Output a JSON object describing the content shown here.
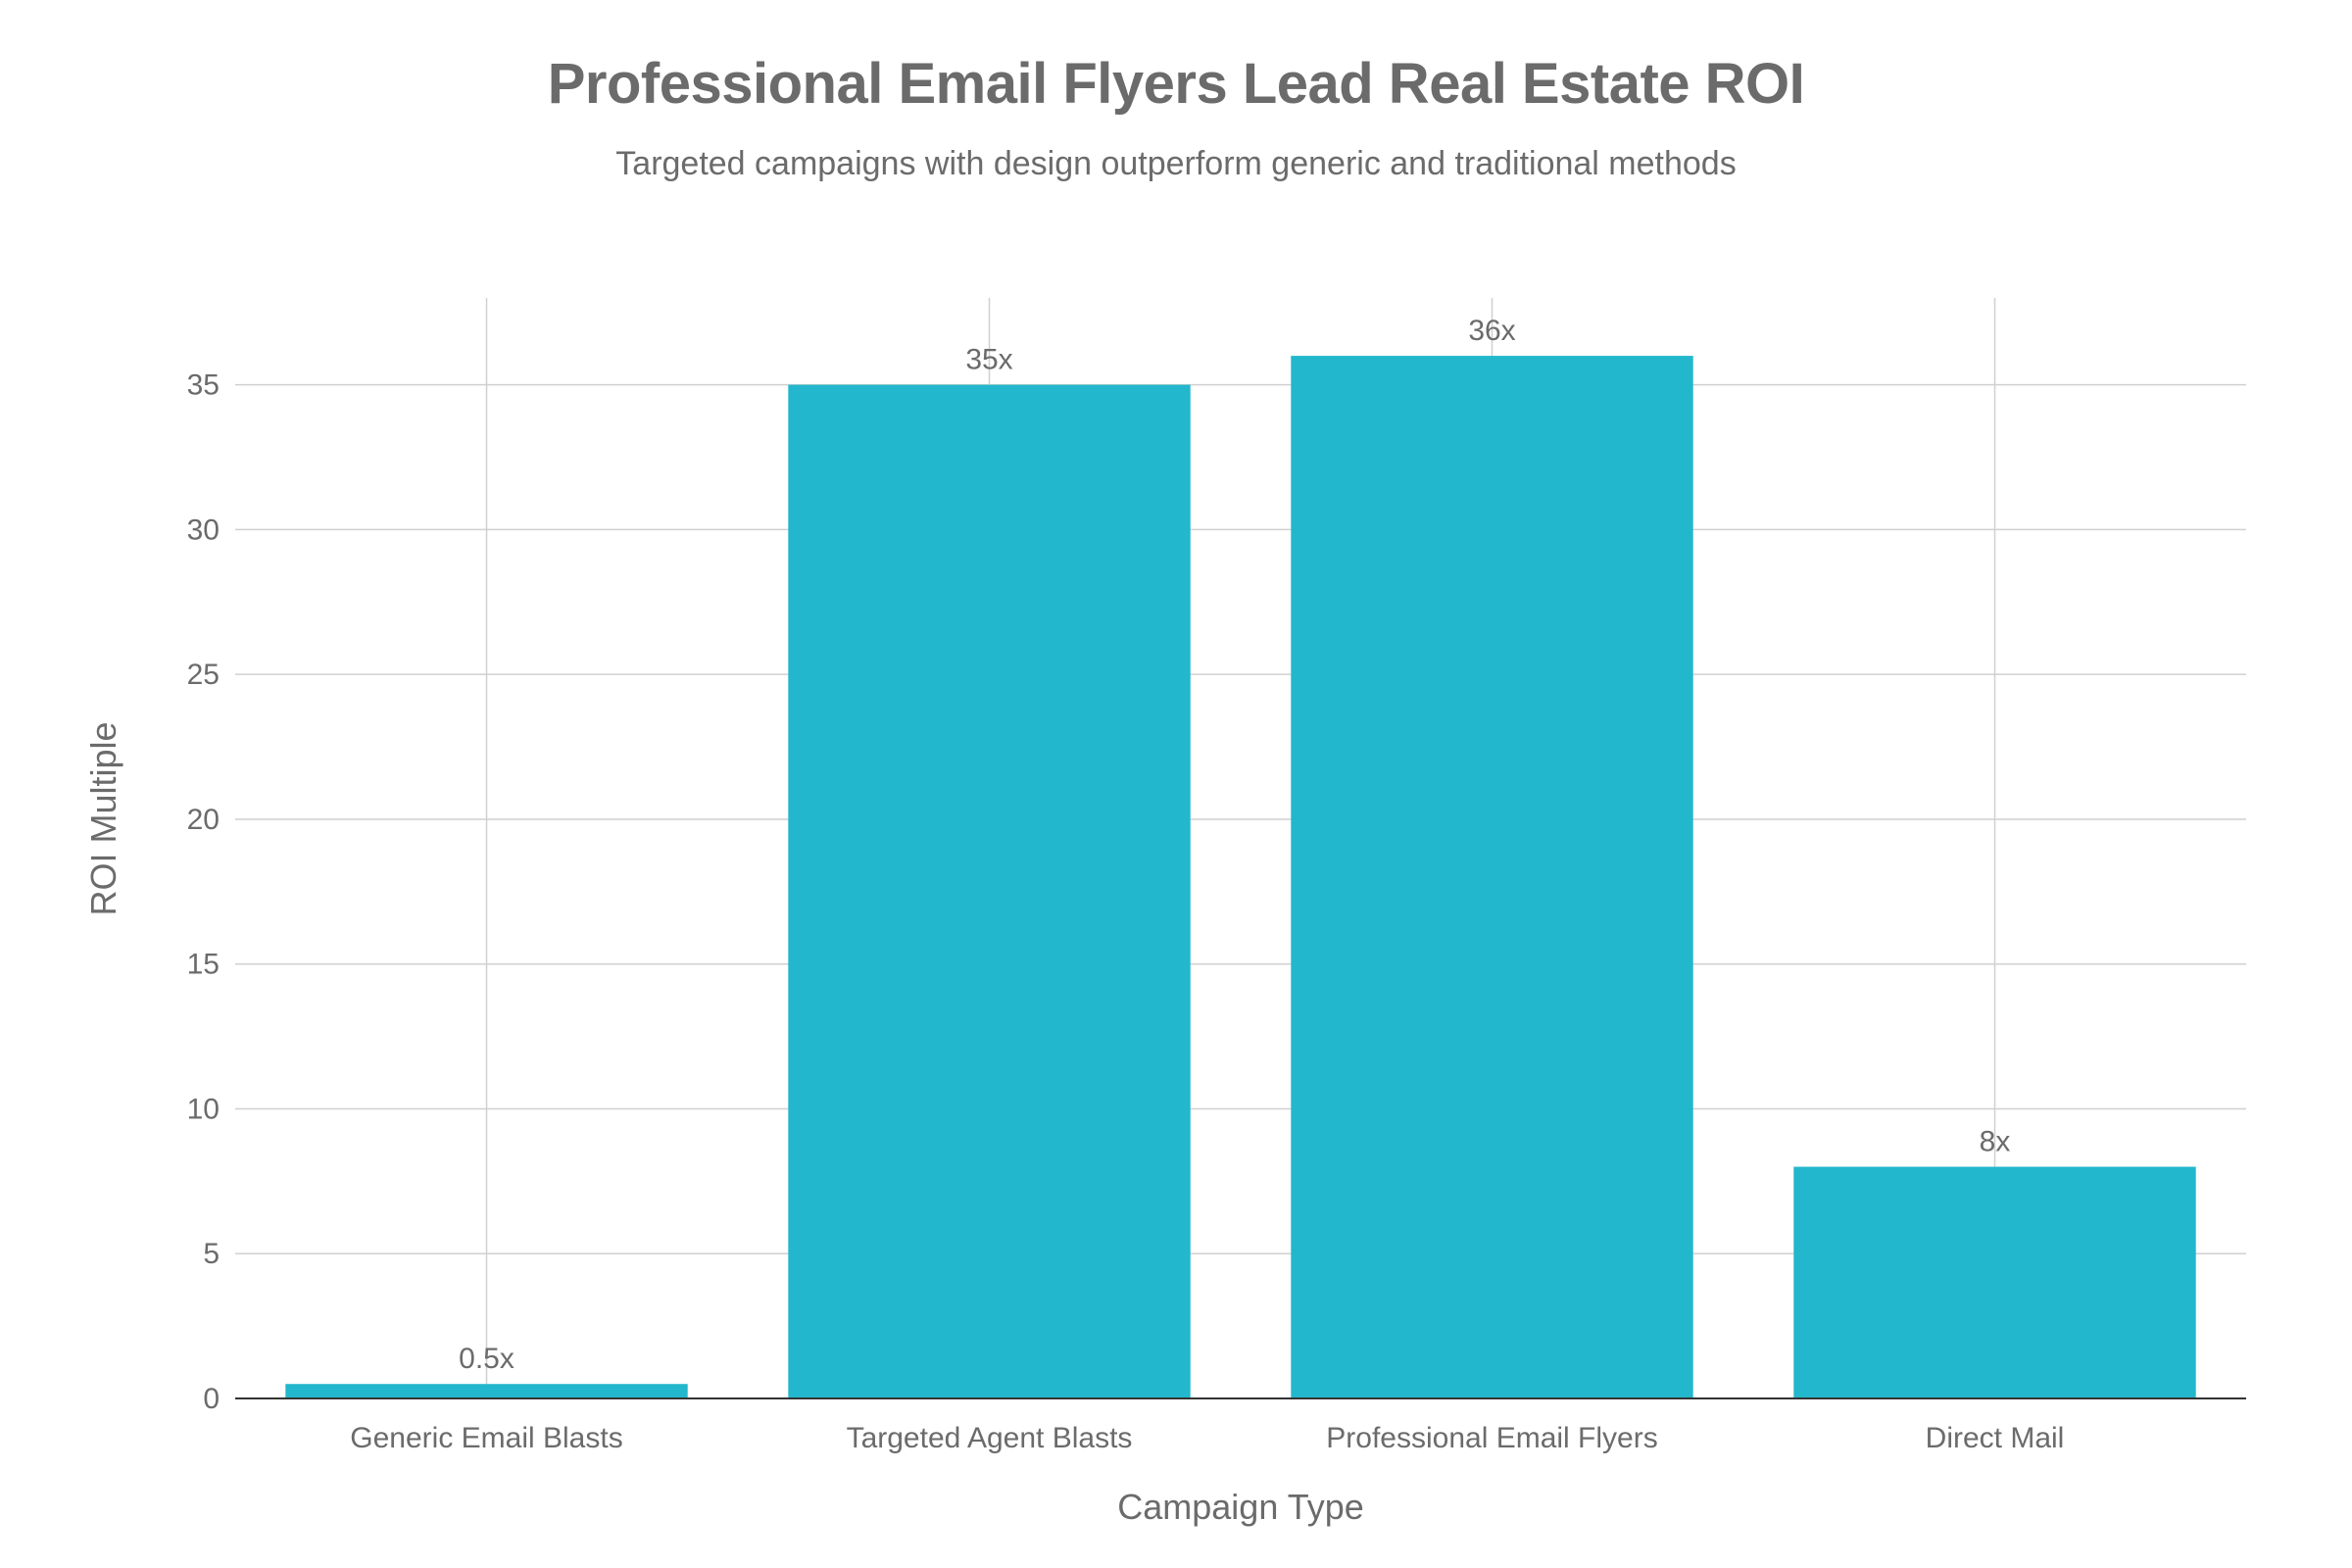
{
  "chart_data": {
    "type": "bar",
    "title": "Professional Email Flyers Lead Real Estate ROI",
    "subtitle": "Targeted campaigns with design outperform generic and traditional methods",
    "xlabel": "Campaign Type",
    "ylabel": "ROI Multiple",
    "categories": [
      "Generic Email Blasts",
      "Targeted Agent Blasts",
      "Professional Email Flyers",
      "Direct Mail"
    ],
    "values": [
      0.5,
      35,
      36,
      8
    ],
    "data_labels": [
      "0.5x",
      "35x",
      "36x",
      "8x"
    ],
    "ylim": [
      0,
      38
    ],
    "yticks": [
      0,
      5,
      10,
      15,
      20,
      25,
      30,
      35
    ],
    "grid": true,
    "legend": "none",
    "bar_color": "#22b7cc"
  }
}
